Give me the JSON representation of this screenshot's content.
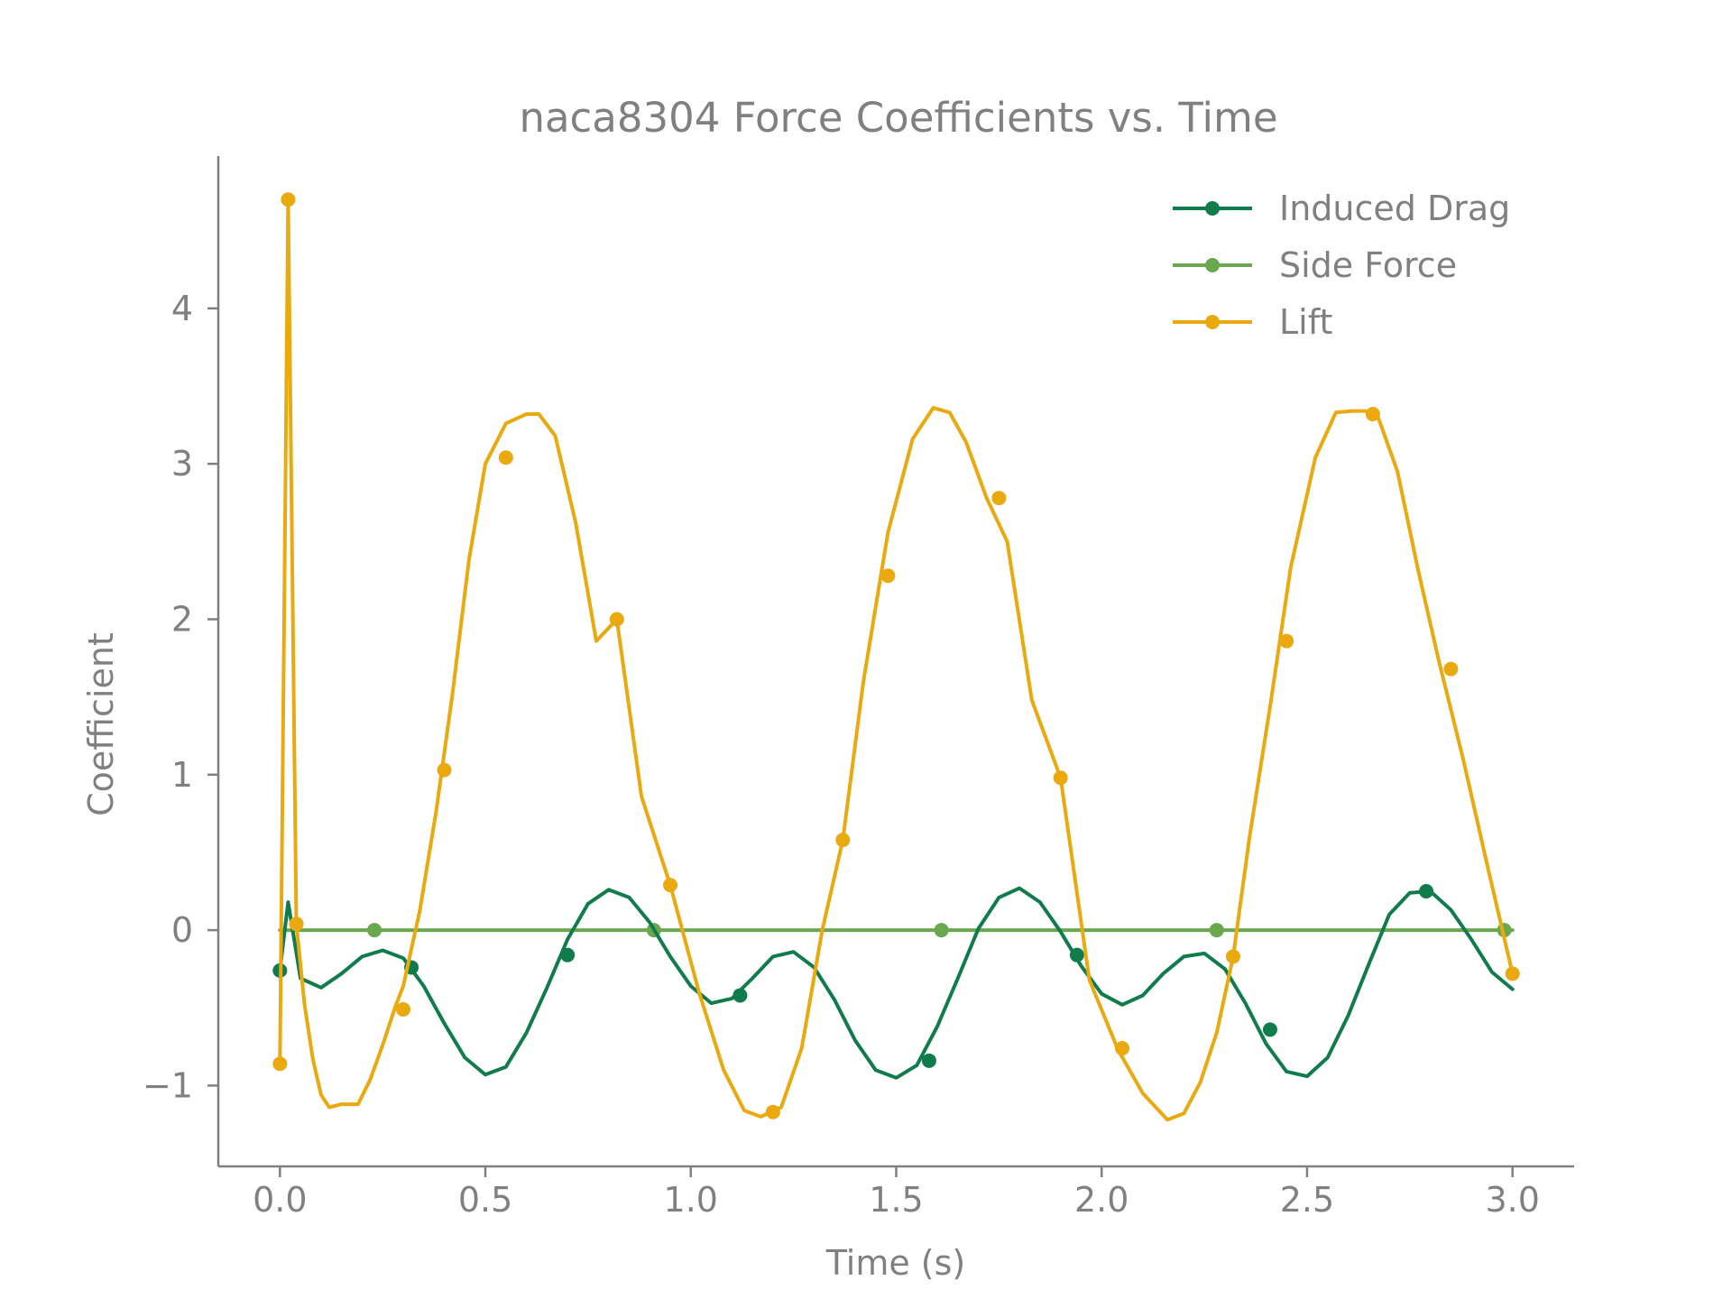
{
  "chart_data": {
    "type": "line",
    "title": "naca8304 Force Coefficients vs. Time",
    "xlabel": "Time (s)",
    "ylabel": "Coefficient",
    "xlim": [
      -0.15,
      3.15
    ],
    "ylim": [
      -1.52,
      4.98
    ],
    "xticks": [
      0.0,
      0.5,
      1.0,
      1.5,
      2.0,
      2.5,
      3.0
    ],
    "xtick_labels": [
      "0.0",
      "0.5",
      "1.0",
      "1.5",
      "2.0",
      "2.5",
      "3.0"
    ],
    "yticks": [
      -1,
      0,
      1,
      2,
      3,
      4
    ],
    "ytick_labels": [
      "−1",
      "0",
      "1",
      "2",
      "3",
      "4"
    ],
    "grid": false,
    "legend_position": "top-right",
    "series": [
      {
        "name": "Induced Drag",
        "color": "#107c4c",
        "x": [
          0.0,
          0.02,
          0.05,
          0.1,
          0.15,
          0.2,
          0.25,
          0.3,
          0.35,
          0.4,
          0.45,
          0.5,
          0.55,
          0.6,
          0.65,
          0.7,
          0.75,
          0.8,
          0.85,
          0.9,
          0.95,
          1.0,
          1.05,
          1.1,
          1.15,
          1.2,
          1.25,
          1.3,
          1.35,
          1.4,
          1.45,
          1.5,
          1.55,
          1.6,
          1.65,
          1.7,
          1.75,
          1.8,
          1.85,
          1.9,
          1.95,
          2.0,
          2.05,
          2.1,
          2.15,
          2.2,
          2.25,
          2.3,
          2.35,
          2.4,
          2.45,
          2.5,
          2.55,
          2.6,
          2.65,
          2.7,
          2.75,
          2.8,
          2.85,
          2.9,
          2.95,
          3.0
        ],
        "y": [
          -0.26,
          0.18,
          -0.31,
          -0.37,
          -0.28,
          -0.17,
          -0.13,
          -0.18,
          -0.36,
          -0.6,
          -0.82,
          -0.93,
          -0.88,
          -0.66,
          -0.37,
          -0.06,
          0.17,
          0.26,
          0.21,
          0.05,
          -0.17,
          -0.36,
          -0.47,
          -0.44,
          -0.31,
          -0.17,
          -0.14,
          -0.24,
          -0.45,
          -0.71,
          -0.9,
          -0.95,
          -0.87,
          -0.62,
          -0.31,
          0.01,
          0.21,
          0.27,
          0.18,
          -0.01,
          -0.23,
          -0.41,
          -0.48,
          -0.42,
          -0.28,
          -0.17,
          -0.15,
          -0.25,
          -0.47,
          -0.73,
          -0.91,
          -0.94,
          -0.82,
          -0.55,
          -0.22,
          0.1,
          0.24,
          0.25,
          0.13,
          -0.06,
          -0.27,
          -0.38
        ],
        "marker_x": [
          0.0,
          0.32,
          0.7,
          1.12,
          1.58,
          1.94,
          2.41,
          2.79
        ],
        "marker_y": [
          -0.26,
          -0.24,
          -0.16,
          -0.42,
          -0.84,
          -0.16,
          -0.64,
          0.25
        ]
      },
      {
        "name": "Side Force",
        "color": "#6aa84f",
        "x": [
          0.0,
          3.0
        ],
        "y": [
          0.0,
          0.0
        ],
        "marker_x": [
          0.23,
          0.91,
          1.61,
          2.28,
          2.98
        ],
        "marker_y": [
          0.0,
          0.0,
          0.0,
          0.0,
          0.0
        ]
      },
      {
        "name": "Lift",
        "color": "#eaa90f",
        "x": [
          0.0,
          0.02,
          0.04,
          0.06,
          0.08,
          0.1,
          0.12,
          0.15,
          0.19,
          0.22,
          0.25,
          0.28,
          0.3,
          0.34,
          0.38,
          0.42,
          0.46,
          0.5,
          0.55,
          0.6,
          0.63,
          0.67,
          0.72,
          0.77,
          0.82,
          0.88,
          0.95,
          1.02,
          1.08,
          1.13,
          1.17,
          1.22,
          1.27,
          1.32,
          1.37,
          1.42,
          1.48,
          1.54,
          1.59,
          1.63,
          1.67,
          1.72,
          1.77,
          1.83,
          1.9,
          1.97,
          2.04,
          2.1,
          2.16,
          2.2,
          2.24,
          2.28,
          2.32,
          2.36,
          2.41,
          2.46,
          2.52,
          2.57,
          2.61,
          2.64,
          2.67,
          2.72,
          2.77,
          2.82,
          2.88,
          2.94,
          3.0
        ],
        "y": [
          -0.86,
          4.7,
          0.04,
          -0.48,
          -0.83,
          -1.06,
          -1.14,
          -1.12,
          -1.12,
          -0.96,
          -0.74,
          -0.5,
          -0.36,
          0.12,
          0.76,
          1.52,
          2.38,
          3.0,
          3.26,
          3.32,
          3.32,
          3.18,
          2.62,
          1.86,
          2.0,
          0.86,
          0.29,
          -0.4,
          -0.9,
          -1.16,
          -1.2,
          -1.14,
          -0.76,
          0.0,
          0.58,
          1.6,
          2.56,
          3.16,
          3.36,
          3.33,
          3.14,
          2.78,
          2.5,
          1.48,
          0.98,
          -0.32,
          -0.77,
          -1.05,
          -1.22,
          -1.18,
          -0.98,
          -0.66,
          -0.17,
          0.6,
          1.44,
          2.33,
          3.04,
          3.33,
          3.34,
          3.34,
          3.32,
          2.95,
          2.32,
          1.74,
          1.1,
          0.4,
          -0.28
        ],
        "marker_x": [
          0.0,
          0.02,
          0.04,
          0.3,
          0.4,
          0.55,
          0.82,
          0.95,
          1.2,
          1.37,
          1.48,
          1.75,
          1.9,
          2.05,
          2.32,
          2.45,
          2.66,
          2.85,
          3.0
        ],
        "marker_y": [
          -0.86,
          4.7,
          0.04,
          -0.51,
          1.03,
          3.04,
          2.0,
          0.29,
          -1.17,
          0.58,
          2.28,
          2.78,
          0.98,
          -0.76,
          -0.17,
          1.86,
          3.32,
          1.68,
          -0.28
        ]
      }
    ]
  }
}
